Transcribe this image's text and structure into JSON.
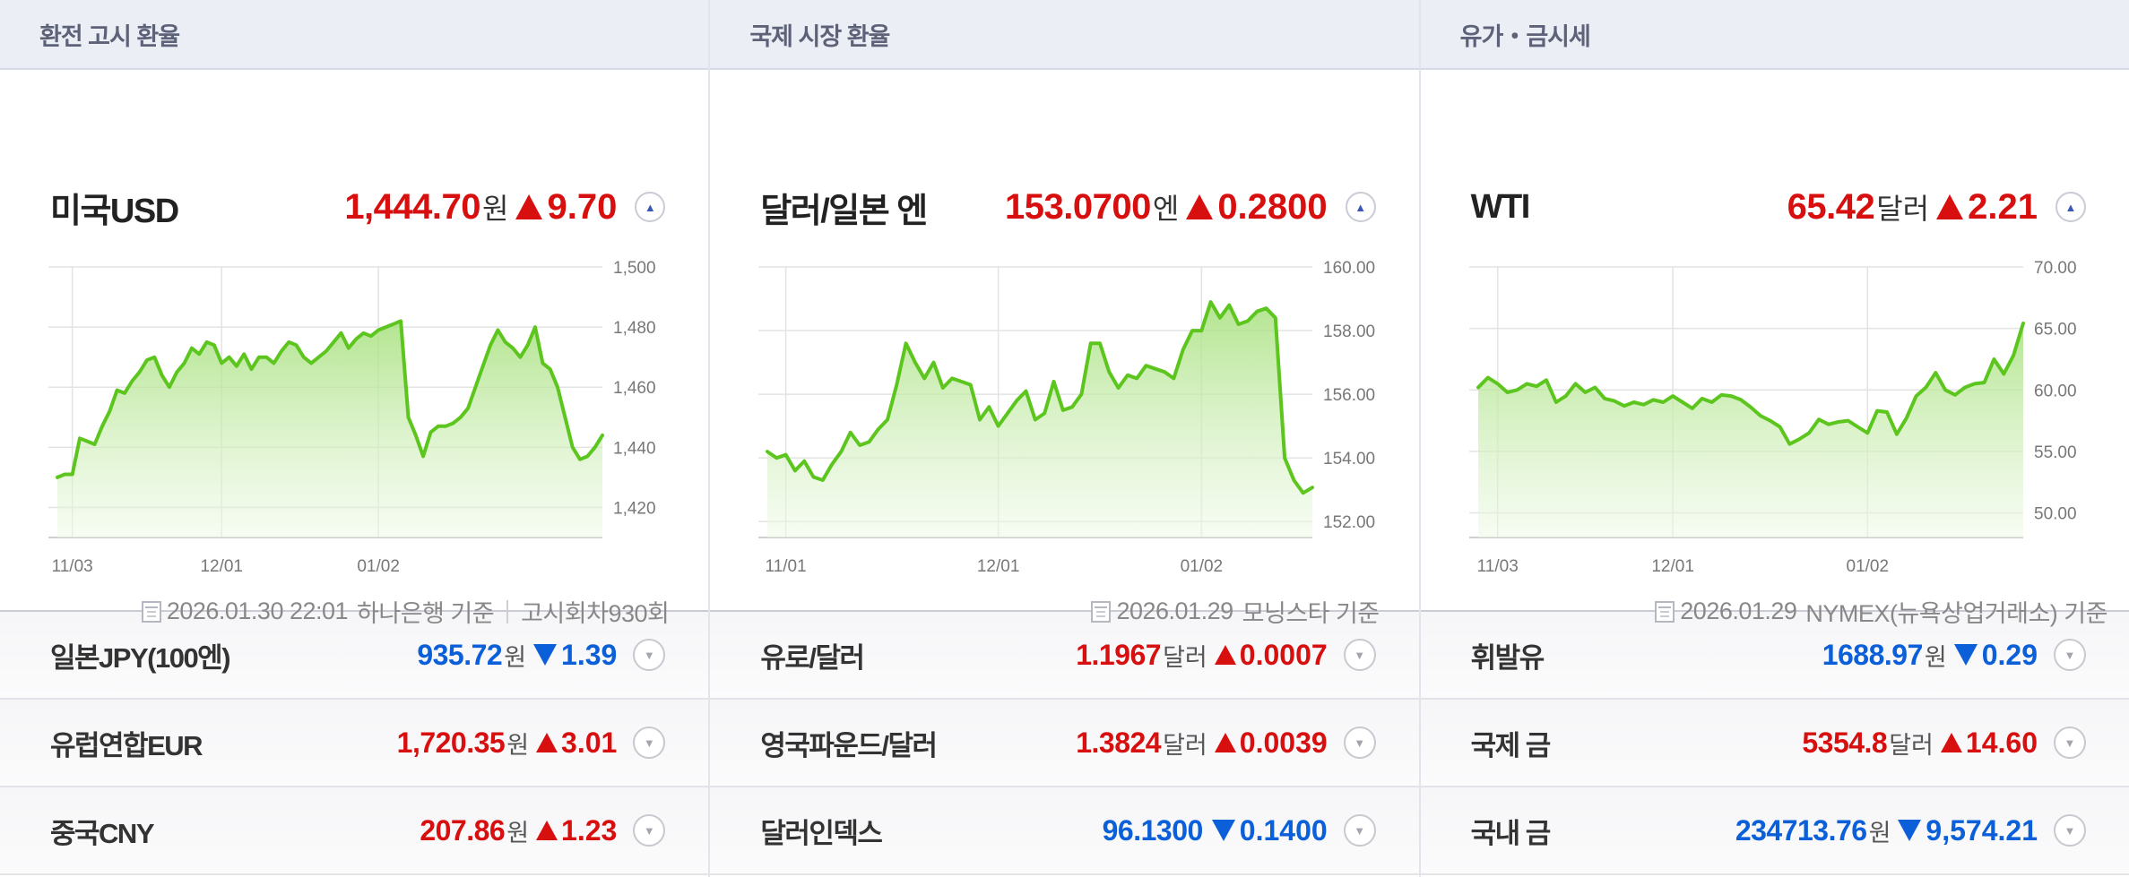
{
  "columns": [
    {
      "header": "환전 고시 환율",
      "main": {
        "name": "미국USD",
        "value": "1,444.70",
        "unit": "원",
        "direction": "up",
        "change": "9.70"
      },
      "source": {
        "date": "2026.01.30 22:01",
        "provider": "하나은행 기준",
        "extra": "고시회차930회"
      },
      "subs": [
        {
          "name": "일본JPY(100엔)",
          "value": "935.72",
          "unit": "원",
          "direction": "down",
          "change": "1.39"
        },
        {
          "name": "유럽연합EUR",
          "value": "1,720.35",
          "unit": "원",
          "direction": "up",
          "change": "3.01"
        },
        {
          "name": "중국CNY",
          "value": "207.86",
          "unit": "원",
          "direction": "up",
          "change": "1.23"
        }
      ]
    },
    {
      "header": "국제 시장 환율",
      "main": {
        "name": "달러/일본 엔",
        "value": "153.0700",
        "unit": "엔",
        "direction": "up",
        "change": "0.2800"
      },
      "source": {
        "date": "2026.01.29",
        "provider": "모닝스타 기준",
        "extra": ""
      },
      "subs": [
        {
          "name": "유로/달러",
          "value": "1.1967",
          "unit": "달러",
          "direction": "up",
          "change": "0.0007"
        },
        {
          "name": "영국파운드/달러",
          "value": "1.3824",
          "unit": "달러",
          "direction": "up",
          "change": "0.0039"
        },
        {
          "name": "달러인덱스",
          "value": "96.1300",
          "unit": "",
          "direction": "down",
          "change": "0.1400"
        }
      ]
    },
    {
      "header": "유가・금시세",
      "main": {
        "name": "WTI",
        "value": "65.42",
        "unit": "달러",
        "direction": "up",
        "change": "2.21"
      },
      "source": {
        "date": "2026.01.29",
        "provider": "NYMEX(뉴욕상업거래소) 기준",
        "extra": ""
      },
      "subs": [
        {
          "name": "휘발유",
          "value": "1688.97",
          "unit": "원",
          "direction": "down",
          "change": "0.29"
        },
        {
          "name": "국제 금",
          "value": "5354.8",
          "unit": "달러",
          "direction": "up",
          "change": "14.60"
        },
        {
          "name": "국내 금",
          "value": "234713.76",
          "unit": "원",
          "direction": "down",
          "change": "9,574.21"
        }
      ]
    }
  ],
  "colors": {
    "up": "#d80f0f",
    "down": "#0b5fd8",
    "line": "#5cc51e",
    "grid": "#e3e3e3",
    "header_bg": "#eceef5"
  },
  "icons": {
    "source": "calendar-icon",
    "toggle_up": "chevron-up-icon",
    "toggle_down": "chevron-down-icon"
  },
  "chart_data": [
    {
      "type": "area",
      "title": "미국USD",
      "ylim": [
        1410,
        1500
      ],
      "ytick_values": [
        1420,
        1440,
        1460,
        1480,
        1500
      ],
      "ytick_labels": [
        "1,420",
        "1,440",
        "1,460",
        "1,480",
        "1,500"
      ],
      "xticks": [
        {
          "label": "11/03",
          "index": 2
        },
        {
          "label": "12/01",
          "index": 22
        },
        {
          "label": "01/02",
          "index": 43
        }
      ],
      "grid": true,
      "values": [
        1430,
        1431,
        1431,
        1443,
        1442,
        1441,
        1447,
        1452,
        1459,
        1458,
        1462,
        1465,
        1469,
        1470,
        1464,
        1460,
        1465,
        1468,
        1473,
        1471,
        1475,
        1474,
        1468,
        1470,
        1467,
        1471,
        1466,
        1470,
        1470,
        1468,
        1472,
        1475,
        1474,
        1470,
        1468,
        1470,
        1472,
        1475,
        1478,
        1473,
        1476,
        1478,
        1477,
        1479,
        1480,
        1481,
        1482,
        1450,
        1444,
        1437,
        1445,
        1447,
        1447,
        1448,
        1450,
        1453,
        1460,
        1467,
        1474,
        1479,
        1475,
        1473,
        1470,
        1474,
        1480,
        1468,
        1466,
        1460,
        1450,
        1440,
        1436,
        1437,
        1440,
        1444
      ]
    },
    {
      "type": "area",
      "title": "달러/일본 엔",
      "ylim": [
        151.5,
        160
      ],
      "ytick_values": [
        152,
        154,
        156,
        158,
        160
      ],
      "ytick_labels": [
        "152.00",
        "154.00",
        "156.00",
        "158.00",
        "160.00"
      ],
      "xticks": [
        {
          "label": "11/01",
          "index": 2
        },
        {
          "label": "12/01",
          "index": 25
        },
        {
          "label": "01/02",
          "index": 47
        }
      ],
      "grid": true,
      "values": [
        154.2,
        154.0,
        154.1,
        153.6,
        153.9,
        153.4,
        153.3,
        153.8,
        154.2,
        154.8,
        154.4,
        154.5,
        154.9,
        155.2,
        156.3,
        157.6,
        157.0,
        156.5,
        157.0,
        156.2,
        156.5,
        156.4,
        156.3,
        155.2,
        155.6,
        155.0,
        155.4,
        155.8,
        156.1,
        155.2,
        155.4,
        156.4,
        155.5,
        155.6,
        156.0,
        157.6,
        157.6,
        156.7,
        156.2,
        156.6,
        156.5,
        156.9,
        156.8,
        156.7,
        156.5,
        157.4,
        158.0,
        158.0,
        158.9,
        158.4,
        158.8,
        158.2,
        158.3,
        158.6,
        158.7,
        158.4,
        154.0,
        153.3,
        152.9,
        153.07
      ]
    },
    {
      "type": "area",
      "title": "WTI",
      "ylim": [
        48,
        70
      ],
      "ytick_values": [
        50,
        55,
        60,
        65,
        70
      ],
      "ytick_labels": [
        "50.00",
        "55.00",
        "60.00",
        "65.00",
        "70.00"
      ],
      "xticks": [
        {
          "label": "11/03",
          "index": 2
        },
        {
          "label": "12/01",
          "index": 20
        },
        {
          "label": "01/02",
          "index": 40
        }
      ],
      "grid": true,
      "values": [
        60.2,
        61.0,
        60.5,
        59.8,
        60.0,
        60.5,
        60.3,
        60.8,
        59.0,
        59.5,
        60.5,
        59.8,
        60.2,
        59.3,
        59.1,
        58.7,
        59.0,
        58.8,
        59.2,
        59.0,
        59.5,
        59.0,
        58.5,
        59.3,
        59.0,
        59.6,
        59.5,
        59.2,
        58.6,
        57.9,
        57.5,
        57.0,
        55.6,
        56.0,
        56.5,
        57.6,
        57.2,
        57.4,
        57.5,
        57.0,
        56.5,
        58.3,
        58.2,
        56.4,
        57.7,
        59.5,
        60.2,
        61.4,
        60.0,
        59.6,
        60.2,
        60.5,
        60.6,
        62.5,
        61.3,
        62.8,
        65.42
      ]
    }
  ]
}
